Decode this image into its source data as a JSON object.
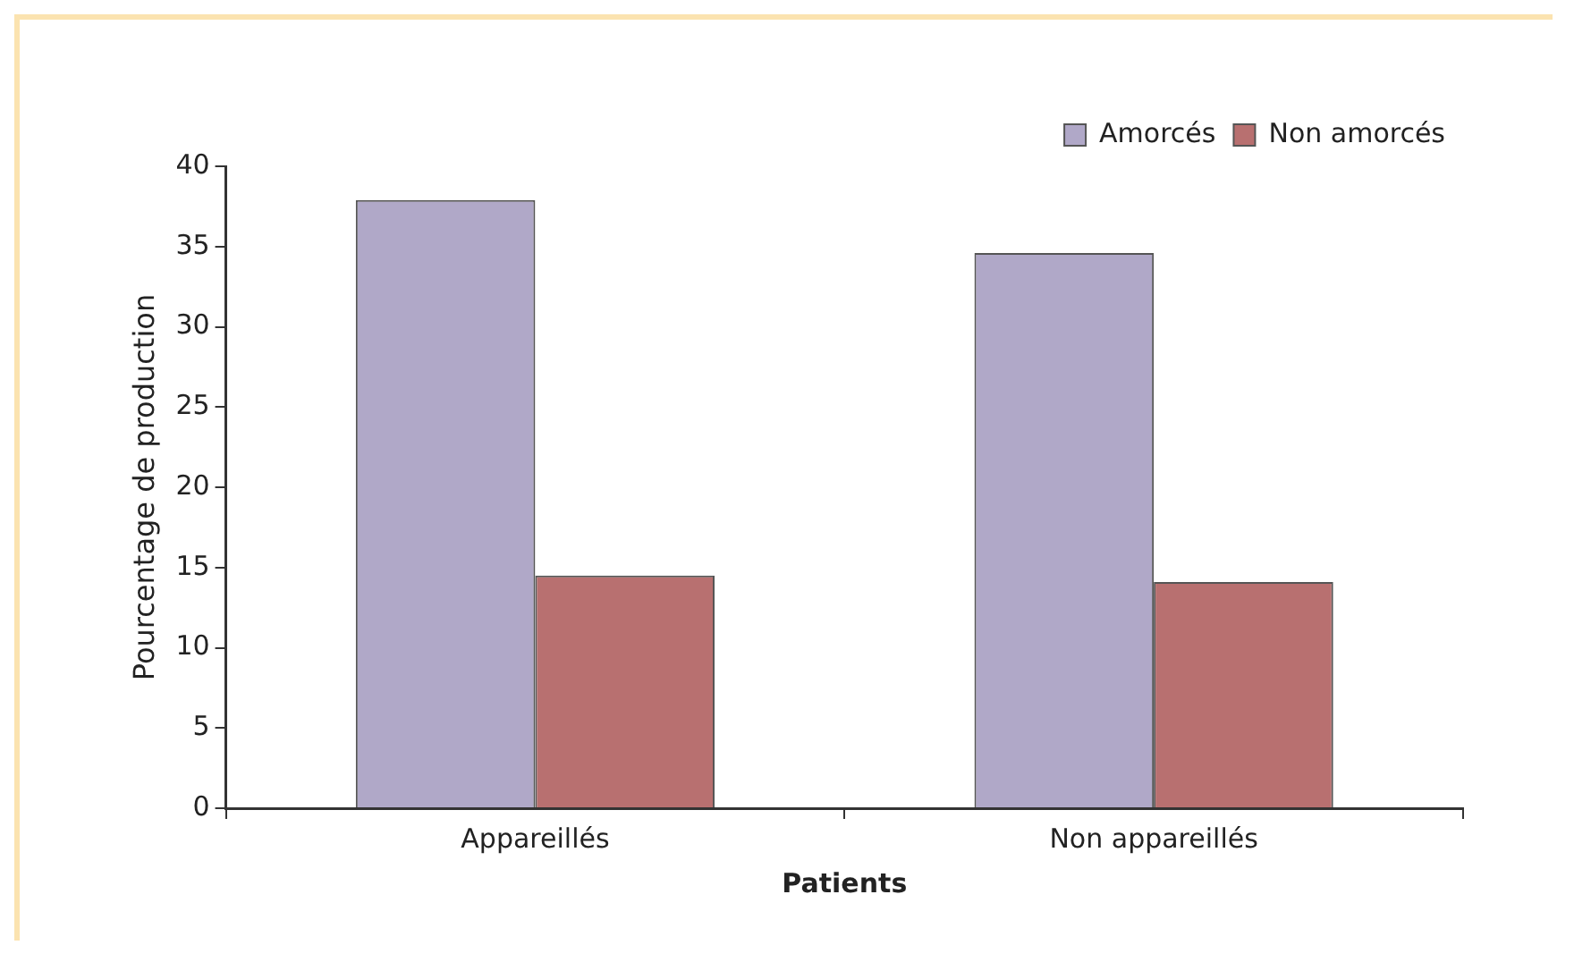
{
  "chart_data": {
    "type": "bar",
    "xlabel": "Patients",
    "ylabel": "Pourcentage de production",
    "categories": [
      "Appareillés",
      "Non appareillés"
    ],
    "series": [
      {
        "name": "Amorcés",
        "color": "#b0a8c8",
        "values": [
          37.9,
          34.6
        ]
      },
      {
        "name": "Non amorcés",
        "color": "#b87070",
        "values": [
          14.5,
          14.1
        ]
      }
    ],
    "ylim": [
      0,
      40
    ],
    "yticks": [
      0,
      5,
      10,
      15,
      20,
      25,
      30,
      35,
      40
    ],
    "grid": false,
    "legend": "top right"
  }
}
